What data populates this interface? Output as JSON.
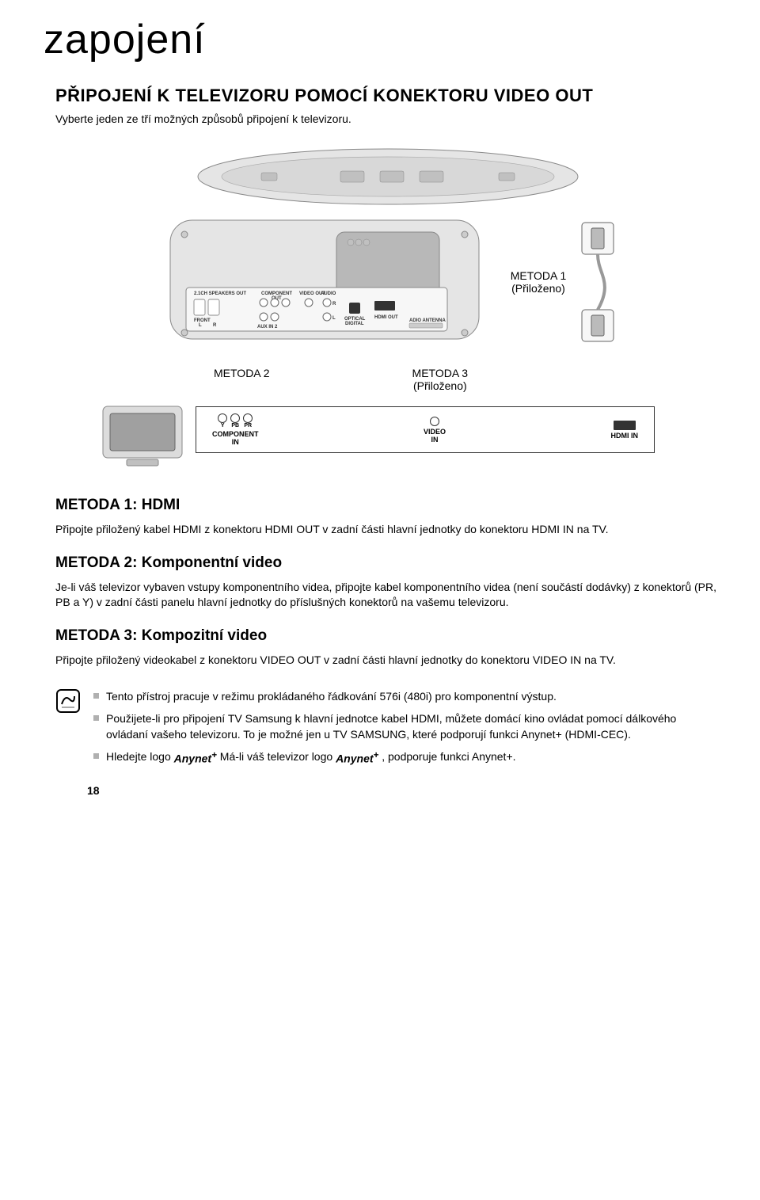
{
  "page": {
    "chapter_title": "zapojení",
    "section_title": "PŘIPOJENÍ K TELEVIZORU POMOCÍ KONEKTORU VIDEO OUT",
    "intro": "Vyberte jeden ze tří možných způsobů připojení k televizoru.",
    "page_num": "18"
  },
  "diagram": {
    "method1_tag": "METODA 1",
    "method1_sub": "(Přiloženo)",
    "method2_tag": "METODA 2",
    "method3_tag": "METODA 3",
    "method3_sub": "(Přiloženo)",
    "panel": {
      "speakers_out": "2.1CH SPEAKERS OUT",
      "front_l": "FRONT L",
      "front_r": "FRONT R",
      "component_out": "COMPONENT OUT",
      "video_out": "VIDEO OUT",
      "aux_in2": "AUX IN 2",
      "audio": "AUDIO",
      "optical_digital": "OPTICAL DIGITAL",
      "hdmi_out": "HDMI OUT",
      "radio_antenna": "ADIO ANTENNA"
    },
    "ports": {
      "component_labels": [
        "Y",
        "PB",
        "PR"
      ],
      "component_in": "COMPONENT IN",
      "video_in": "VIDEO IN",
      "hdmi_in": "HDMI IN"
    }
  },
  "methods": {
    "m1": {
      "heading": "METODA 1: HDMI",
      "body": "Připojte přiložený kabel HDMI z konektoru HDMI OUT v zadní části hlavní jednotky do konektoru HDMI IN na TV."
    },
    "m2": {
      "heading": "METODA 2: Komponentní video",
      "body": "Je-li váš televizor vybaven vstupy komponentního videa, připojte kabel komponentního videa (není součástí dodávky) z konektorů (PR, PB a Y) v zadní části panelu hlavní jednotky do příslušných konektorů na vašemu televizoru."
    },
    "m3": {
      "heading": "METODA 3: Kompozitní video",
      "body": "Připojte přiložený videokabel z konektoru VIDEO OUT v zadní části hlavní jednotky do konektoru VIDEO IN na TV."
    }
  },
  "notes": {
    "n1": "Tento přístroj pracuje v režimu prokládaného řádkování 576i (480i) pro komponentní výstup.",
    "n2": "Použijete-li pro připojení TV Samsung k hlavní jednotce kabel HDMI, můžete domácí kino ovládat pomocí dálkového ovládaní vašeho televizoru. To je možné jen u TV SAMSUNG, které podporují funkci Anynet+ (HDMI-CEC).",
    "n3_a": "Hledejte logo ",
    "n3_b": " Má-li váš televizor logo ",
    "n3_c": " , podporuje funkci Anynet+."
  },
  "colors": {
    "text": "#000000",
    "bg": "#ffffff",
    "bullet": "#b0b0b0",
    "device_body": "#e5e5e5",
    "device_dark": "#b8b8b8",
    "panel_border": "#888888",
    "panel_fill": "#f7f7f7"
  }
}
